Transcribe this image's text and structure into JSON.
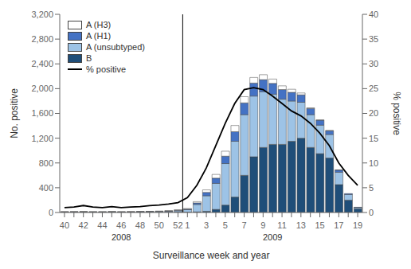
{
  "chart_data": {
    "type": "bar",
    "stacked": true,
    "grid": false,
    "legend": "upper left",
    "xlabel": "Surveillance week and year",
    "ylabel": "No. positive",
    "y2label": "% positive",
    "annotations": [
      {
        "text": "2008"
      },
      {
        "text": "2009"
      }
    ],
    "categories": [
      "40",
      null,
      "42",
      null,
      "44",
      null,
      "46",
      null,
      "48",
      null,
      "50",
      null,
      "52",
      "1",
      null,
      "3",
      null,
      "5",
      null,
      "7",
      null,
      "9",
      null,
      "11",
      null,
      "13",
      null,
      "15",
      null,
      "17",
      null,
      "19"
    ],
    "ylim": [
      0,
      3200
    ],
    "yticks": [
      0,
      400,
      800,
      {
        "value": 1200,
        "label": "1,200"
      },
      {
        "value": 1600,
        "label": "1,600"
      },
      {
        "value": 2000,
        "label": "2,000"
      },
      {
        "value": 2400,
        "label": "2,400"
      },
      {
        "value": 2800,
        "label": "2,800"
      },
      {
        "value": 3200,
        "label": "3,200"
      }
    ],
    "y2lim": [
      0,
      40
    ],
    "y2ticks": [
      0,
      5,
      10,
      15,
      20,
      25,
      30,
      35,
      40
    ],
    "series": [
      {
        "name": "A (H3)",
        "type": "bar",
        "color": "#ffffff",
        "values": [
          3,
          2,
          3,
          2,
          2,
          2,
          2,
          3,
          3,
          4,
          5,
          6,
          10,
          10,
          20,
          40,
          60,
          80,
          100,
          100,
          90,
          80,
          70,
          60,
          50,
          30,
          10,
          5,
          3,
          2,
          0,
          0
        ]
      },
      {
        "name": "A (H1)",
        "type": "bar",
        "color": "#4472c4",
        "values": [
          2,
          2,
          2,
          2,
          2,
          2,
          2,
          2,
          3,
          3,
          4,
          5,
          8,
          10,
          25,
          55,
          85,
          120,
          155,
          190,
          210,
          195,
          175,
          155,
          140,
          120,
          100,
          80,
          60,
          35,
          15,
          5
        ]
      },
      {
        "name": "A (unsubtyped)",
        "type": "bar",
        "color": "#9dc3e6",
        "values": [
          5,
          6,
          7,
          5,
          5,
          7,
          5,
          6,
          8,
          10,
          12,
          15,
          22,
          40,
          120,
          250,
          420,
          670,
          900,
          980,
          980,
          900,
          810,
          730,
          650,
          580,
          530,
          460,
          380,
          200,
          90,
          20
        ]
      },
      {
        "name": "B",
        "type": "bar",
        "color": "#1f4e79",
        "values": [
          3,
          3,
          3,
          3,
          3,
          3,
          3,
          3,
          3,
          3,
          3,
          4,
          5,
          5,
          10,
          20,
          50,
          120,
          250,
          600,
          900,
          1050,
          1100,
          1100,
          1150,
          1200,
          1050,
          950,
          880,
          450,
          200,
          60
        ]
      },
      {
        "name": "% positive",
        "type": "line",
        "axis": "y2",
        "color": "#000000",
        "values": [
          1.0,
          1.1,
          1.4,
          1.1,
          1.0,
          1.2,
          1.0,
          1.1,
          1.2,
          1.4,
          1.5,
          1.7,
          2.0,
          3.0,
          5.5,
          9.0,
          13.5,
          18.0,
          22.0,
          24.8,
          25.2,
          24.8,
          23.5,
          22.0,
          20.5,
          19.5,
          18.0,
          16.0,
          13.5,
          10.0,
          7.5,
          5.5
        ]
      }
    ]
  }
}
